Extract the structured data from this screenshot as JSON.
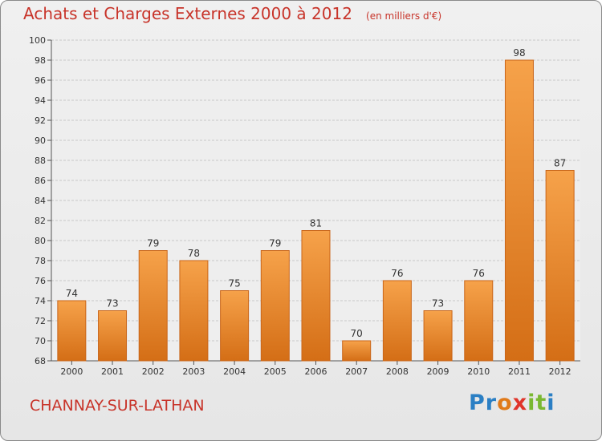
{
  "header": {
    "title": "Achats et Charges Externes 2000 à 2012",
    "unit": "(en milliers d'€)"
  },
  "footer": {
    "place": "CHANNAY-SUR-LATHAN",
    "logo_letters": [
      {
        "char": "P",
        "color": "#2b7fc4"
      },
      {
        "char": "r",
        "color": "#2b7fc4"
      },
      {
        "char": "o",
        "color": "#e07a1a"
      },
      {
        "char": "x",
        "color": "#e0342a"
      },
      {
        "char": "i",
        "color": "#7ab831"
      },
      {
        "char": "t",
        "color": "#7ab831"
      },
      {
        "char": "i",
        "color": "#2b7fc4"
      }
    ]
  },
  "colors": {
    "bar_top": "#f6a24a",
    "bar_bottom": "#d46e16",
    "bar_edge": "#c9661a",
    "text_accent": "#c8342a",
    "grid": "#c8c8c8"
  },
  "chart_data": {
    "type": "bar",
    "title": "Achats et Charges Externes 2000 à 2012",
    "subtitle": "(en milliers d'€)",
    "xlabel": "",
    "ylabel": "",
    "categories": [
      "2000",
      "2001",
      "2002",
      "2003",
      "2004",
      "2005",
      "2006",
      "2007",
      "2008",
      "2009",
      "2010",
      "2011",
      "2012"
    ],
    "values": [
      74,
      73,
      79,
      78,
      75,
      79,
      81,
      70,
      76,
      73,
      76,
      98,
      87
    ],
    "ylim": [
      68,
      100
    ],
    "yticks": [
      68,
      70,
      72,
      74,
      76,
      78,
      80,
      82,
      84,
      86,
      88,
      90,
      92,
      94,
      96,
      98,
      100
    ],
    "grid": true,
    "legend": "none"
  }
}
